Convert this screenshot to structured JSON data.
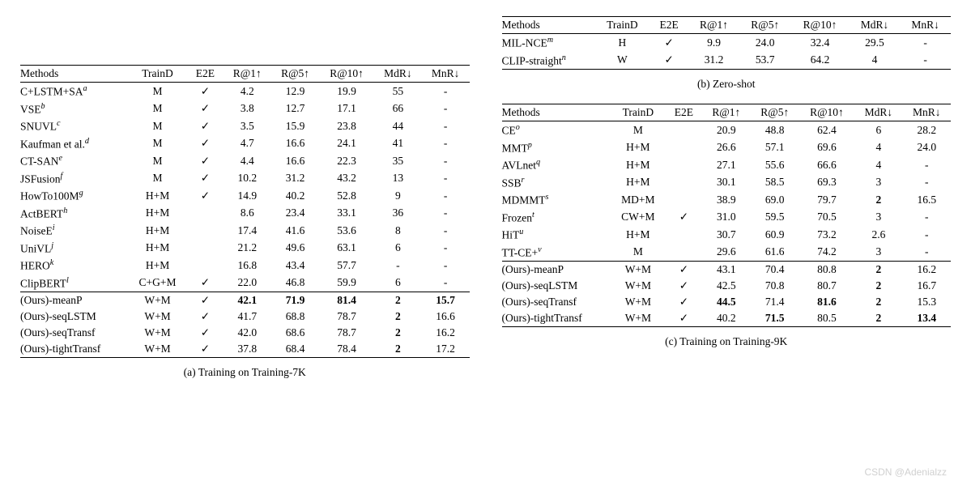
{
  "headers": [
    "Methods",
    "TrainD",
    "E2E",
    "R@1↑",
    "R@5↑",
    "R@10↑",
    "MdR↓",
    "MnR↓"
  ],
  "table_a": {
    "caption": "(a) Training on Training-7K",
    "groups": [
      [
        {
          "m": "C+LSTM+SA",
          "sup": "a",
          "d": "M",
          "e": true,
          "r1": "4.2",
          "r5": "12.9",
          "r10": "19.9",
          "mdr": "55",
          "mnr": "-"
        },
        {
          "m": "VSE",
          "sup": "b",
          "d": "M",
          "e": true,
          "r1": "3.8",
          "r5": "12.7",
          "r10": "17.1",
          "mdr": "66",
          "mnr": "-"
        },
        {
          "m": "SNUVL",
          "sup": "c",
          "d": "M",
          "e": true,
          "r1": "3.5",
          "r5": "15.9",
          "r10": "23.8",
          "mdr": "44",
          "mnr": "-"
        },
        {
          "m": "Kaufman et al.",
          "sup": "d",
          "d": "M",
          "e": true,
          "r1": "4.7",
          "r5": "16.6",
          "r10": "24.1",
          "mdr": "41",
          "mnr": "-"
        },
        {
          "m": "CT-SAN",
          "sup": "e",
          "d": "M",
          "e": true,
          "r1": "4.4",
          "r5": "16.6",
          "r10": "22.3",
          "mdr": "35",
          "mnr": "-"
        },
        {
          "m": "JSFusion",
          "sup": "f",
          "d": "M",
          "e": true,
          "r1": "10.2",
          "r5": "31.2",
          "r10": "43.2",
          "mdr": "13",
          "mnr": "-"
        },
        {
          "m": "HowTo100M",
          "sup": "g",
          "d": "H+M",
          "e": true,
          "r1": "14.9",
          "r5": "40.2",
          "r10": "52.8",
          "mdr": "9",
          "mnr": "-"
        },
        {
          "m": "ActBERT",
          "sup": "h",
          "d": "H+M",
          "e": false,
          "r1": "8.6",
          "r5": "23.4",
          "r10": "33.1",
          "mdr": "36",
          "mnr": "-"
        },
        {
          "m": "NoiseE",
          "sup": "i",
          "d": "H+M",
          "e": false,
          "r1": "17.4",
          "r5": "41.6",
          "r10": "53.6",
          "mdr": "8",
          "mnr": "-"
        },
        {
          "m": "UniVL",
          "sup": "j",
          "d": "H+M",
          "e": false,
          "r1": "21.2",
          "r5": "49.6",
          "r10": "63.1",
          "mdr": "6",
          "mnr": "-"
        },
        {
          "m": "HERO",
          "sup": "k",
          "d": "H+M",
          "e": false,
          "r1": "16.8",
          "r5": "43.4",
          "r10": "57.7",
          "mdr": "-",
          "mnr": "-"
        },
        {
          "m": "ClipBERT",
          "sup": "l",
          "d": "C+G+M",
          "e": true,
          "r1": "22.0",
          "r5": "46.8",
          "r10": "59.9",
          "mdr": "6",
          "mnr": "-"
        }
      ],
      [
        {
          "m": "(Ours)-meanP",
          "d": "W+M",
          "e": true,
          "r1": "42.1",
          "r5": "71.9",
          "r10": "81.4",
          "mdr": "2",
          "mnr": "15.7",
          "b": [
            "r1",
            "r5",
            "r10",
            "mdr",
            "mnr"
          ]
        },
        {
          "m": "(Ours)-seqLSTM",
          "d": "W+M",
          "e": true,
          "r1": "41.7",
          "r5": "68.8",
          "r10": "78.7",
          "mdr": "2",
          "mnr": "16.6",
          "b": [
            "mdr"
          ]
        },
        {
          "m": "(Ours)-seqTransf",
          "d": "W+M",
          "e": true,
          "r1": "42.0",
          "r5": "68.6",
          "r10": "78.7",
          "mdr": "2",
          "mnr": "16.2",
          "b": [
            "mdr"
          ]
        },
        {
          "m": "(Ours)-tightTransf",
          "d": "W+M",
          "e": true,
          "r1": "37.8",
          "r5": "68.4",
          "r10": "78.4",
          "mdr": "2",
          "mnr": "17.2",
          "b": [
            "mdr"
          ]
        }
      ]
    ]
  },
  "table_b": {
    "caption": "(b) Zero-shot",
    "groups": [
      [
        {
          "m": "MIL-NCE",
          "sup": "m",
          "d": "H",
          "e": true,
          "r1": "9.9",
          "r5": "24.0",
          "r10": "32.4",
          "mdr": "29.5",
          "mnr": "-"
        },
        {
          "m": "CLIP-straight",
          "sup": "n",
          "d": "W",
          "e": true,
          "r1": "31.2",
          "r5": "53.7",
          "r10": "64.2",
          "mdr": "4",
          "mnr": "-"
        }
      ]
    ]
  },
  "table_c": {
    "caption": "(c) Training on Training-9K",
    "groups": [
      [
        {
          "m": "CE",
          "sup": "o",
          "d": "M",
          "e": false,
          "r1": "20.9",
          "r5": "48.8",
          "r10": "62.4",
          "mdr": "6",
          "mnr": "28.2"
        },
        {
          "m": "MMT",
          "sup": "p",
          "d": "H+M",
          "e": false,
          "r1": "26.6",
          "r5": "57.1",
          "r10": "69.6",
          "mdr": "4",
          "mnr": "24.0"
        },
        {
          "m": "AVLnet",
          "sup": "q",
          "d": "H+M",
          "e": false,
          "r1": "27.1",
          "r5": "55.6",
          "r10": "66.6",
          "mdr": "4",
          "mnr": "-"
        },
        {
          "m": "SSB",
          "sup": "r",
          "d": "H+M",
          "e": false,
          "r1": "30.1",
          "r5": "58.5",
          "r10": "69.3",
          "mdr": "3",
          "mnr": "-"
        },
        {
          "m": "MDMMT",
          "sup": "s",
          "d": "MD+M",
          "e": false,
          "r1": "38.9",
          "r5": "69.0",
          "r10": "79.7",
          "mdr": "2",
          "mnr": "16.5",
          "b": [
            "mdr"
          ]
        },
        {
          "m": "Frozen",
          "sup": "t",
          "d": "CW+M",
          "e": true,
          "r1": "31.0",
          "r5": "59.5",
          "r10": "70.5",
          "mdr": "3",
          "mnr": "-"
        },
        {
          "m": "HiT",
          "sup": "u",
          "d": "H+M",
          "e": false,
          "r1": "30.7",
          "r5": "60.9",
          "r10": "73.2",
          "mdr": "2.6",
          "mnr": "-"
        },
        {
          "m": "TT-CE+",
          "sup": "v",
          "d": "M",
          "e": false,
          "r1": "29.6",
          "r5": "61.6",
          "r10": "74.2",
          "mdr": "3",
          "mnr": "-"
        }
      ],
      [
        {
          "m": "(Ours)-meanP",
          "d": "W+M",
          "e": true,
          "r1": "43.1",
          "r5": "70.4",
          "r10": "80.8",
          "mdr": "2",
          "mnr": "16.2",
          "b": [
            "mdr"
          ]
        },
        {
          "m": "(Ours)-seqLSTM",
          "d": "W+M",
          "e": true,
          "r1": "42.5",
          "r5": "70.8",
          "r10": "80.7",
          "mdr": "2",
          "mnr": "16.7",
          "b": [
            "mdr"
          ]
        },
        {
          "m": "(Ours)-seqTransf",
          "d": "W+M",
          "e": true,
          "r1": "44.5",
          "r5": "71.4",
          "r10": "81.6",
          "mdr": "2",
          "mnr": "15.3",
          "b": [
            "r1",
            "r10",
            "mdr"
          ]
        },
        {
          "m": "(Ours)-tightTransf",
          "d": "W+M",
          "e": true,
          "r1": "40.2",
          "r5": "71.5",
          "r10": "80.5",
          "mdr": "2",
          "mnr": "13.4",
          "b": [
            "r5",
            "mdr",
            "mnr"
          ]
        }
      ]
    ]
  },
  "watermark": "CSDN @Adenialzz"
}
